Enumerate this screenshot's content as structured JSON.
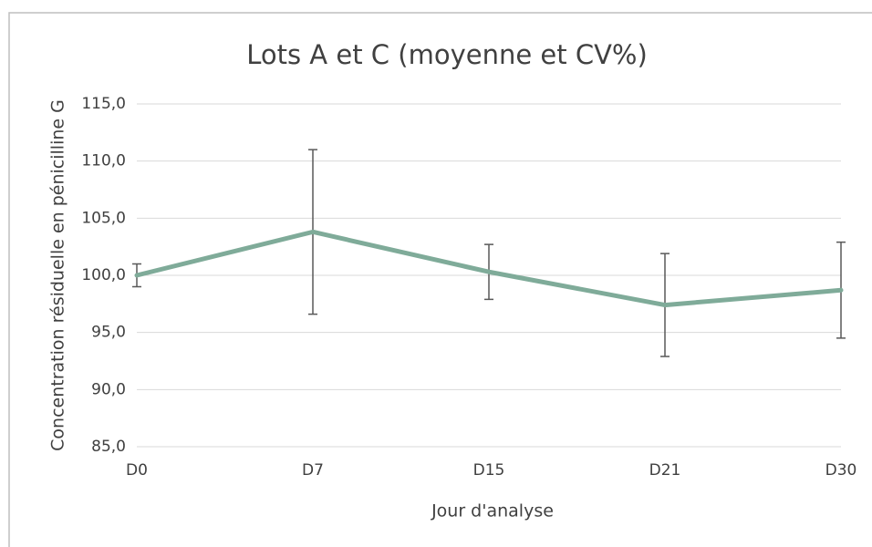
{
  "chart_data": {
    "type": "line",
    "title": "Lots A et C (moyenne et CV%)",
    "x_label": "Jour d'analyse",
    "y_label": "Concentration résiduelle en pénicilline G",
    "categories": [
      "D0",
      "D7",
      "D15",
      "D21",
      "D30"
    ],
    "series": [
      {
        "color": "#7fab99",
        "values": [
          100.0,
          103.8,
          100.3,
          97.4,
          98.7
        ],
        "errors": [
          1.0,
          7.2,
          2.4,
          4.5,
          4.2
        ]
      }
    ],
    "ylim": [
      85,
      115
    ],
    "yticks": [
      {
        "value": 85,
        "label": "85,0"
      },
      {
        "value": 90,
        "label": "90,0"
      },
      {
        "value": 95,
        "label": "95,0"
      },
      {
        "value": 100,
        "label": "100,0"
      },
      {
        "value": 105,
        "label": "105,0"
      },
      {
        "value": 110,
        "label": "110,0"
      },
      {
        "value": 115,
        "label": "115,0"
      }
    ],
    "grid": true
  }
}
